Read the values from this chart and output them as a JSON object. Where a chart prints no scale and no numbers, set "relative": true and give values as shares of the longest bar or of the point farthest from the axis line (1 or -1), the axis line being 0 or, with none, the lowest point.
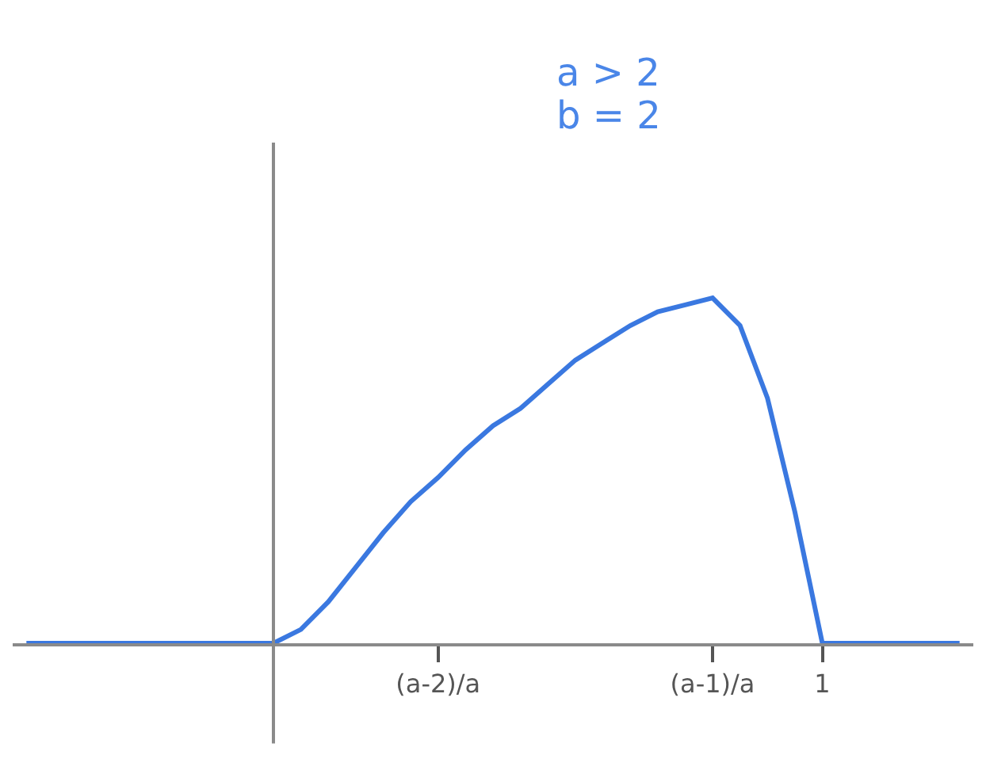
{
  "chart_data": {
    "type": "line",
    "relative": true,
    "categories": [
      null,
      null,
      null,
      null,
      null,
      null,
      null,
      null,
      null,
      null,
      null,
      null,
      null,
      null,
      null,
      "(a-2)/a",
      null,
      null,
      null,
      null,
      null,
      null,
      null,
      null,
      null,
      "(a-1)/a",
      null,
      null,
      null,
      "1",
      null,
      null,
      null,
      null,
      null
    ],
    "series": [
      {
        "color": "#3a78e0",
        "values": [
          0,
          0,
          0,
          0,
          0,
          0,
          0,
          0,
          0,
          0,
          0.04,
          0.12,
          0.22,
          0.32,
          0.41,
          0.48,
          0.56,
          0.63,
          0.68,
          0.75,
          0.82,
          0.87,
          0.92,
          0.96,
          0.98,
          1,
          0.92,
          0.71,
          0.38,
          0,
          0,
          0,
          0,
          0,
          0
        ]
      }
    ],
    "annotations": [
      "a > 2",
      "b = 2"
    ],
    "legend": false,
    "marker": "none",
    "line_style": "solid"
  }
}
